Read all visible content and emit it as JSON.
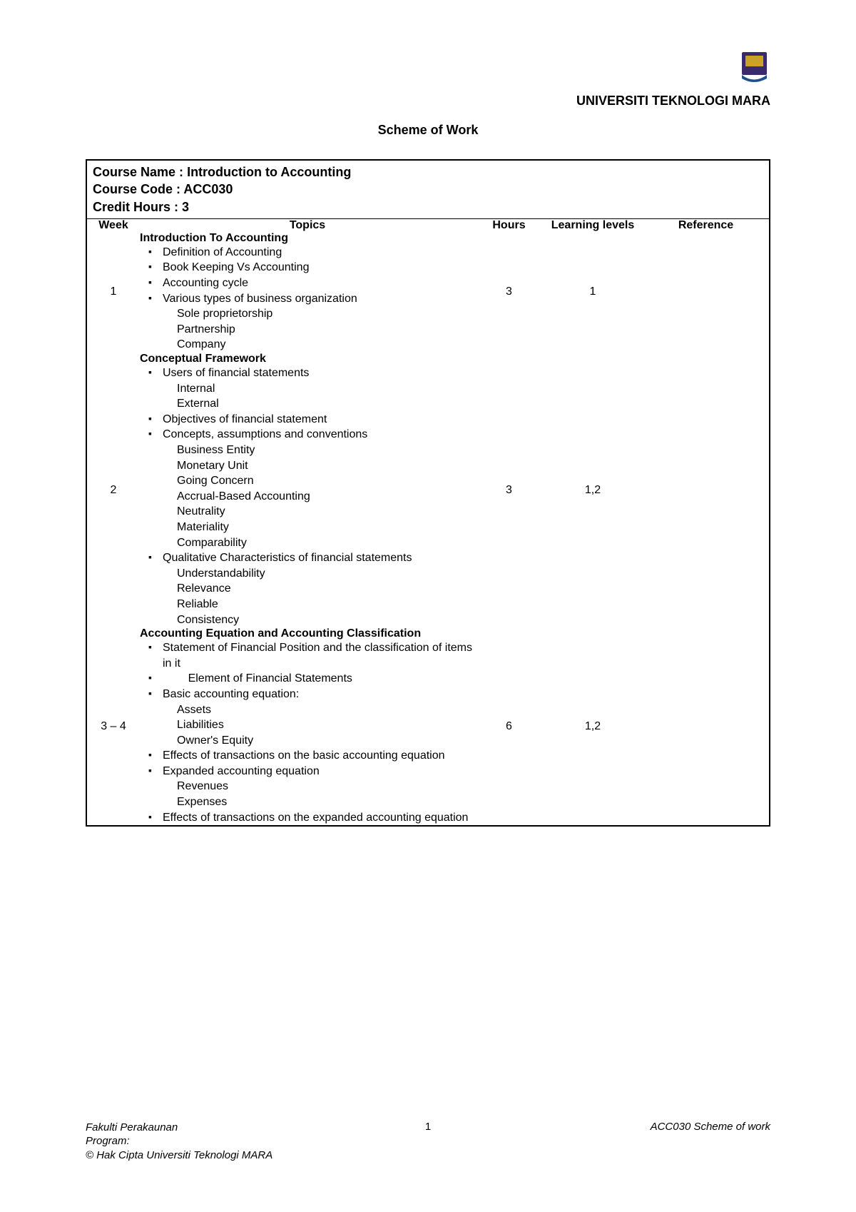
{
  "colors": {
    "text": "#000000",
    "background": "#ffffff",
    "border": "#000000",
    "logo_purple": "#3a2a6b",
    "logo_gold": "#c9a227",
    "logo_blue": "#1e4f8f"
  },
  "fonts": {
    "body_family": "Arial",
    "body_size_pt": 13,
    "title_size_pt": 14,
    "uni_size_pt": 14
  },
  "header": {
    "university": "UNIVERSITI TEKNOLOGI MARA",
    "doc_title": "Scheme of Work"
  },
  "course": {
    "name_label": "Course Name :",
    "name": "Introduction to Accounting",
    "code_label": "Course Code :",
    "code": "ACC030",
    "credit_label": "Credit Hours :",
    "credit": "3"
  },
  "columns": {
    "week": "Week",
    "topics": "Topics",
    "hours": "Hours",
    "levels": "Learning levels",
    "reference": "Reference"
  },
  "rows": [
    {
      "week": "1",
      "title": "Introduction To Accounting",
      "hours": "3",
      "levels": "1",
      "reference": "",
      "bullets": [
        {
          "text": "Definition of Accounting"
        },
        {
          "text": "Book Keeping Vs Accounting"
        },
        {
          "text": "Accounting cycle"
        },
        {
          "text": "Various types of business organization",
          "subitems": [
            "Sole proprietorship",
            "Partnership",
            "Company"
          ]
        }
      ]
    },
    {
      "week": "2",
      "title": "Conceptual Framework",
      "hours": "3",
      "levels": "1,2",
      "reference": "",
      "bullets": [
        {
          "text": "Users of financial statements",
          "subitems": [
            "Internal",
            "External"
          ]
        },
        {
          "text": "Objectives of financial statement"
        },
        {
          "text": "Concepts, assumptions and conventions",
          "subitems": [
            "Business Entity",
            "Monetary Unit",
            "Going Concern",
            "Accrual-Based Accounting",
            "Neutrality",
            "Materiality",
            "Comparability"
          ]
        },
        {
          "text": "Qualitative Characteristics of financial statements",
          "subitems": [
            "Understandability",
            "Relevance",
            "Reliable",
            "Consistency"
          ]
        }
      ]
    },
    {
      "week": "3 – 4",
      "title": "Accounting Equation and Accounting Classification",
      "hours": "6",
      "levels": "1,2",
      "reference": "",
      "bullets": [
        {
          "text": "Statement of Financial Position and the classification of items in it"
        },
        {
          "text": "        Element of Financial Statements"
        },
        {
          "text": "Basic accounting equation:",
          "subitems": [
            "Assets",
            "Liabilities",
            "Owner's Equity"
          ]
        },
        {
          "text": "Effects of transactions on the basic accounting equation"
        },
        {
          "text": "Expanded accounting equation",
          "subitems": [
            "Revenues",
            "Expenses"
          ]
        },
        {
          "text": "Effects of transactions on the expanded accounting equation"
        }
      ]
    }
  ],
  "footer": {
    "left_line1": "Fakulti Perakaunan",
    "left_line2": "Program:",
    "left_line3": "© Hak Cipta Universiti Teknologi MARA",
    "page_number": "1",
    "right": "ACC030 Scheme of work"
  }
}
